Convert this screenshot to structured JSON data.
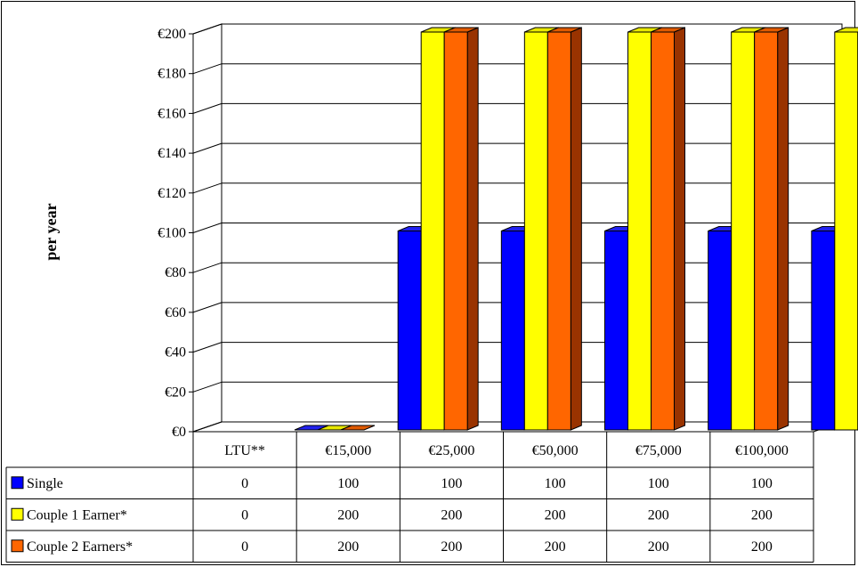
{
  "chart_data": {
    "type": "bar",
    "title": "",
    "xlabel": "",
    "ylabel": "per year",
    "ylim": [
      0,
      200
    ],
    "ytick_step": 20,
    "y_tick_labels": [
      "€0",
      "€20",
      "€40",
      "€60",
      "€80",
      "€100",
      "€120",
      "€140",
      "€160",
      "€180",
      "€200"
    ],
    "categories": [
      "LTU**",
      "€15,000",
      "€25,000",
      "€50,000",
      "€75,000",
      "€100,000"
    ],
    "series": [
      {
        "name": "Single",
        "color": "#0000ff",
        "side": "#000099",
        "top": "#2222ee",
        "values": [
          0,
          100,
          100,
          100,
          100,
          100
        ],
        "value_labels": [
          "0",
          "100",
          "100",
          "100",
          "100",
          "100"
        ]
      },
      {
        "name": "Couple 1 Earner*",
        "color": "#ffff00",
        "side": "#999900",
        "top": "#e8e800",
        "values": [
          0,
          200,
          200,
          200,
          200,
          200
        ],
        "value_labels": [
          "0",
          "200",
          "200",
          "200",
          "200",
          "200"
        ]
      },
      {
        "name": "Couple 2 Earners*",
        "color": "#ff6600",
        "side": "#993300",
        "top": "#e05a00",
        "values": [
          0,
          200,
          200,
          200,
          200,
          200
        ],
        "value_labels": [
          "0",
          "200",
          "200",
          "200",
          "200",
          "200"
        ]
      }
    ],
    "grid": true,
    "legend": "data-table"
  }
}
